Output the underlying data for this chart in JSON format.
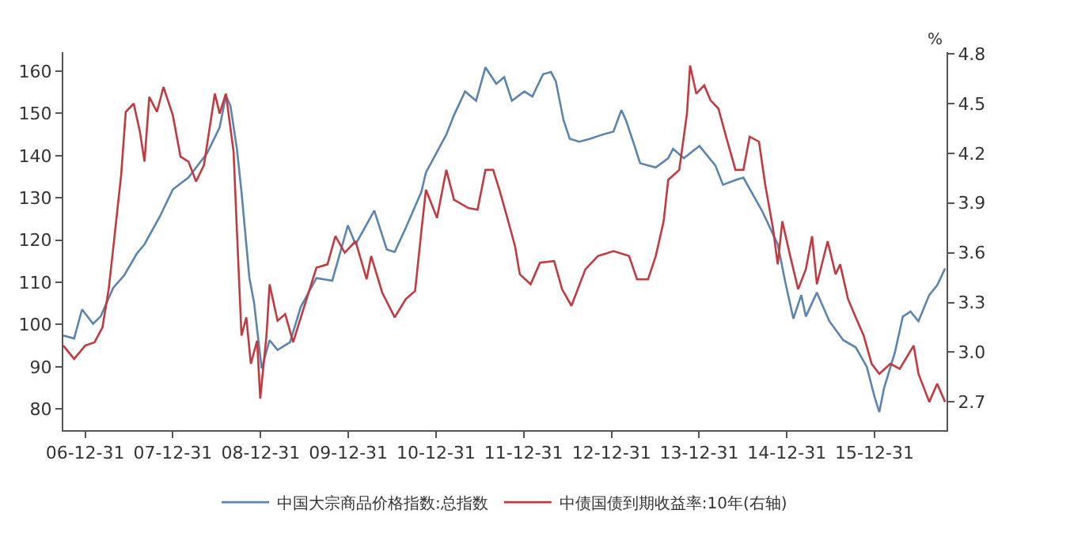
{
  "chart_data": {
    "type": "line",
    "y2label": "%",
    "legend": "bottom",
    "xlim": [
      "2006-10-01",
      "2016-10-26"
    ],
    "xticks": [
      {
        "value": "2006-12-31",
        "label": "06-12-31"
      },
      {
        "value": "2007-12-31",
        "label": "07-12-31"
      },
      {
        "value": "2008-12-31",
        "label": "08-12-31"
      },
      {
        "value": "2009-12-31",
        "label": "09-12-31"
      },
      {
        "value": "2010-12-31",
        "label": "10-12-31"
      },
      {
        "value": "2011-12-31",
        "label": "11-12-31"
      },
      {
        "value": "2012-12-31",
        "label": "12-12-31"
      },
      {
        "value": "2013-12-31",
        "label": "13-12-31"
      },
      {
        "value": "2014-12-31",
        "label": "14-12-31"
      },
      {
        "value": "2015-12-31",
        "label": "15-12-31"
      }
    ],
    "ylim": [
      75,
      164.5
    ],
    "yticks": [
      80,
      90,
      100,
      110,
      120,
      130,
      140,
      150,
      160
    ],
    "y2lim": [
      2.53,
      4.81
    ],
    "y2ticks": [
      {
        "value": 2.7,
        "label": "2.7"
      },
      {
        "value": 3.0,
        "label": "3.0"
      },
      {
        "value": 3.3,
        "label": "3.3"
      },
      {
        "value": 3.6,
        "label": "3.6"
      },
      {
        "value": 3.9,
        "label": "3.9"
      },
      {
        "value": 4.2,
        "label": "4.2"
      },
      {
        "value": 4.5,
        "label": "4.5"
      },
      {
        "value": 4.8,
        "label": "4.8"
      }
    ],
    "series": [
      {
        "name": "中国大宗商品价格指数:总指数",
        "color": "#5b84b1",
        "x": [
          "2006-10-01",
          "2006-11-15",
          "2006-12-18",
          "2007-02-02",
          "2007-03-06",
          "2007-04-27",
          "2007-06-12",
          "2007-08-03",
          "2007-09-04",
          "2007-11-08",
          "2007-12-31",
          "2008-03-05",
          "2008-05-22",
          "2008-07-13",
          "2008-08-08",
          "2008-08-27",
          "2008-09-23",
          "2008-10-12",
          "2008-11-14",
          "2008-12-03",
          "2009-01-04",
          "2009-02-06",
          "2009-03-11",
          "2009-05-02",
          "2009-06-16",
          "2009-08-20",
          "2009-10-25",
          "2009-12-29",
          "2010-01-30",
          "2010-04-18",
          "2010-06-09",
          "2010-07-12",
          "2010-08-27",
          "2010-10-31",
          "2010-11-19",
          "2011-02-12",
          "2011-03-16",
          "2011-05-01",
          "2011-06-16",
          "2011-07-25",
          "2011-09-08",
          "2011-10-11",
          "2011-11-12",
          "2012-01-03",
          "2012-02-05",
          "2012-03-21",
          "2012-04-23",
          "2012-05-13",
          "2012-06-14",
          "2012-07-10",
          "2012-08-18",
          "2012-10-03",
          "2012-11-24",
          "2013-01-08",
          "2013-02-10",
          "2013-03-01",
          "2013-04-03",
          "2013-04-29",
          "2013-07-03",
          "2013-08-24",
          "2013-09-13",
          "2013-10-28",
          "2014-01-01",
          "2014-03-08",
          "2014-04-09",
          "2014-05-31",
          "2014-07-03",
          "2014-09-19",
          "2014-11-23",
          "2014-12-25",
          "2015-01-27",
          "2015-03-01",
          "2015-03-20",
          "2015-05-05",
          "2015-06-26",
          "2015-08-23",
          "2015-10-14",
          "2015-11-29",
          "2016-01-01",
          "2016-01-20",
          "2016-02-09",
          "2016-03-25",
          "2016-04-27",
          "2016-05-29",
          "2016-07-01",
          "2016-08-15",
          "2016-09-17",
          "2016-10-20"
        ],
        "values": [
          97.4,
          96.7,
          103.6,
          100.2,
          102,
          108.7,
          111.7,
          116.8,
          119,
          125.7,
          132,
          134.8,
          140.6,
          146.7,
          154.2,
          151.8,
          141.6,
          131.4,
          111,
          105.3,
          89.6,
          96.3,
          94,
          95.8,
          104.2,
          111,
          110.4,
          123.5,
          119,
          127,
          117.8,
          117.2,
          122.9,
          131.4,
          136,
          145,
          149.6,
          155.2,
          153,
          160.9,
          157,
          158.6,
          153,
          155.2,
          154,
          159.3,
          159.8,
          157.6,
          148.4,
          144,
          143.3,
          144,
          145,
          145.7,
          150.8,
          148.4,
          142.8,
          138.2,
          137.2,
          139.4,
          141.6,
          139.4,
          142.3,
          137.7,
          133.1,
          134.2,
          134.8,
          126.9,
          119,
          109.9,
          101.4,
          107,
          101.9,
          107.6,
          100.8,
          96.3,
          94.6,
          90,
          82.7,
          79.3,
          85,
          93.4,
          101.9,
          103.1,
          100.8,
          107,
          109.3,
          113.3
        ]
      },
      {
        "name": "中债国债到期收益率:10年(右轴)",
        "color": "#c23a3f",
        "axis": "y2",
        "x": [
          "2006-10-01",
          "2006-11-15",
          "2006-12-31",
          "2007-02-08",
          "2007-03-13",
          "2007-04-08",
          "2007-04-27",
          "2007-05-30",
          "2007-06-18",
          "2007-07-21",
          "2007-08-16",
          "2007-09-04",
          "2007-09-24",
          "2007-10-26",
          "2007-11-22",
          "2007-12-31",
          "2008-02-01",
          "2008-03-05",
          "2008-04-06",
          "2008-05-09",
          "2008-06-23",
          "2008-07-13",
          "2008-08-08",
          "2008-09-09",
          "2008-09-23",
          "2008-10-12",
          "2008-11-01",
          "2008-11-20",
          "2008-12-16",
          "2008-12-29",
          "2009-01-24",
          "2009-02-06",
          "2009-03-11",
          "2009-04-12",
          "2009-05-15",
          "2009-06-29",
          "2009-08-20",
          "2009-10-05",
          "2009-11-07",
          "2009-12-16",
          "2010-01-30",
          "2010-03-17",
          "2010-04-05",
          "2010-05-21",
          "2010-07-12",
          "2010-08-27",
          "2010-10-05",
          "2010-10-31",
          "2010-11-19",
          "2011-01-04",
          "2011-02-12",
          "2011-03-16",
          "2011-05-14",
          "2011-06-22",
          "2011-07-25",
          "2011-08-26",
          "2011-09-21",
          "2011-10-24",
          "2011-11-25",
          "2011-12-15",
          "2012-01-29",
          "2012-03-08",
          "2012-05-06",
          "2012-06-08",
          "2012-07-17",
          "2012-09-13",
          "2012-11-04",
          "2013-01-08",
          "2013-03-14",
          "2013-04-16",
          "2013-06-01",
          "2013-07-03",
          "2013-08-05",
          "2013-08-24",
          "2013-10-09",
          "2013-11-10",
          "2013-11-23",
          "2013-12-19",
          "2014-01-21",
          "2014-02-16",
          "2014-03-21",
          "2014-04-22",
          "2014-05-31",
          "2014-07-03",
          "2014-07-29",
          "2014-09-06",
          "2014-10-02",
          "2014-11-03",
          "2014-11-23",
          "2014-12-12",
          "2015-01-14",
          "2015-02-16",
          "2015-03-20",
          "2015-04-15",
          "2015-05-05",
          "2015-06-19",
          "2015-07-22",
          "2015-08-10",
          "2015-09-12",
          "2015-10-14",
          "2015-11-16",
          "2015-12-19",
          "2016-01-20",
          "2016-03-06",
          "2016-04-14",
          "2016-06-11",
          "2016-07-01",
          "2016-08-15",
          "2016-09-17",
          "2016-10-20"
        ],
        "values": [
          3.04,
          2.96,
          3.04,
          3.06,
          3.15,
          3.38,
          3.63,
          4.07,
          4.45,
          4.5,
          4.33,
          4.15,
          4.54,
          4.45,
          4.6,
          4.43,
          4.18,
          4.15,
          4.03,
          4.13,
          4.56,
          4.44,
          4.56,
          4.21,
          3.73,
          3.1,
          3.21,
          2.93,
          3.07,
          2.72,
          3.1,
          3.41,
          3.19,
          3.23,
          3.06,
          3.27,
          3.51,
          3.53,
          3.7,
          3.6,
          3.67,
          3.44,
          3.58,
          3.36,
          3.21,
          3.32,
          3.37,
          3.73,
          3.98,
          3.81,
          4.1,
          3.92,
          3.87,
          3.86,
          4.1,
          4.1,
          3.98,
          3.81,
          3.64,
          3.47,
          3.41,
          3.54,
          3.55,
          3.38,
          3.28,
          3.5,
          3.58,
          3.61,
          3.58,
          3.44,
          3.44,
          3.58,
          3.79,
          4.04,
          4.1,
          4.44,
          4.73,
          4.56,
          4.61,
          4.52,
          4.47,
          4.3,
          4.1,
          4.1,
          4.3,
          4.27,
          4.01,
          3.75,
          3.53,
          3.79,
          3.58,
          3.38,
          3.5,
          3.7,
          3.41,
          3.67,
          3.47,
          3.53,
          3.32,
          3.21,
          3.1,
          2.93,
          2.87,
          2.93,
          2.9,
          3.04,
          2.87,
          2.7,
          2.81,
          2.7
        ]
      }
    ]
  }
}
